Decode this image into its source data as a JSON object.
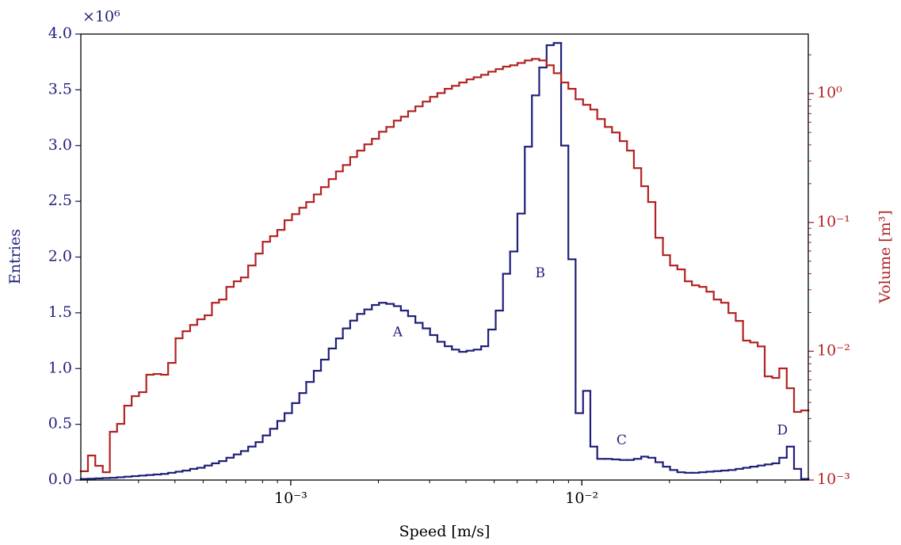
{
  "chart_data": {
    "type": "histogram",
    "xlabel": "Speed [m/s]",
    "ylabel": "Entries",
    "y_multiplier_label": "×10⁶",
    "y2label": "Volume [m³]",
    "xscale": "log",
    "y2scale": "log",
    "xlim": [
      0.00019,
      0.06
    ],
    "ylim": [
      0,
      4
    ],
    "y2lim": [
      0.001,
      2.9
    ],
    "xticks": [
      {
        "value": 0.001,
        "label": "10⁻³"
      },
      {
        "value": 0.01,
        "label": "10⁻²"
      }
    ],
    "xticks_minor": [
      0.0002,
      0.0003,
      0.0004,
      0.0005,
      0.0006,
      0.0007,
      0.0008,
      0.0009,
      0.002,
      0.003,
      0.004,
      0.005,
      0.006,
      0.007,
      0.008,
      0.009,
      0.02,
      0.03,
      0.04,
      0.05
    ],
    "yticks": [
      {
        "value": 0,
        "label": "0.0"
      },
      0.5,
      {
        "value": 1,
        "label": "1.0"
      },
      1.5,
      {
        "value": 2,
        "label": "2.0"
      },
      2.5,
      {
        "value": 3,
        "label": "3.0"
      },
      3.5,
      {
        "value": 4,
        "label": "4.0"
      }
    ],
    "y2ticks": [
      {
        "value": 0.001,
        "label": "10⁻³"
      },
      {
        "value": 0.01,
        "label": "10⁻²"
      },
      {
        "value": 0.1,
        "label": "10⁻¹"
      },
      {
        "value": 1,
        "label": "10⁰"
      }
    ],
    "y2ticks_minor": [
      0.002,
      0.003,
      0.004,
      0.005,
      0.006,
      0.007,
      0.008,
      0.009,
      0.02,
      0.03,
      0.04,
      0.05,
      0.06,
      0.07,
      0.08,
      0.09,
      0.2,
      0.3,
      0.4,
      0.5,
      0.6,
      0.7,
      0.8,
      0.9,
      2
    ],
    "bins": [
      0.00019,
      0.000201,
      0.000213,
      0.000226,
      0.000239,
      0.000253,
      0.000268,
      0.000284,
      0.000301,
      0.000319,
      0.000338,
      0.000358,
      0.000379,
      0.000402,
      0.000425,
      0.000451,
      0.000477,
      0.000506,
      0.000536,
      0.000567,
      0.000601,
      0.000637,
      0.000674,
      0.000714,
      0.000757,
      0.000801,
      0.000849,
      0.000899,
      0.000952,
      0.00101,
      0.00107,
      0.00113,
      0.0012,
      0.00127,
      0.00135,
      0.00143,
      0.00151,
      0.0016,
      0.00169,
      0.00179,
      0.0019,
      0.00201,
      0.00213,
      0.00226,
      0.00239,
      0.00253,
      0.00268,
      0.00284,
      0.00301,
      0.00319,
      0.00338,
      0.00358,
      0.00379,
      0.00402,
      0.00425,
      0.00451,
      0.00477,
      0.00506,
      0.00536,
      0.00567,
      0.00601,
      0.00637,
      0.00674,
      0.00714,
      0.00757,
      0.00801,
      0.00849,
      0.00899,
      0.00952,
      0.0101,
      0.0107,
      0.0113,
      0.012,
      0.0127,
      0.0135,
      0.0143,
      0.0151,
      0.016,
      0.0169,
      0.0179,
      0.019,
      0.0201,
      0.0213,
      0.0226,
      0.0239,
      0.0253,
      0.0268,
      0.0284,
      0.0301,
      0.0319,
      0.0338,
      0.0358,
      0.0379,
      0.0402,
      0.0425,
      0.0451,
      0.0477,
      0.0506,
      0.0536,
      0.0567,
      0.0601
    ],
    "series": [
      {
        "name": "Entries",
        "axis": "y",
        "color": "#1f1f7a",
        "values": [
          0.01,
          0.012,
          0.015,
          0.018,
          0.02,
          0.025,
          0.03,
          0.035,
          0.04,
          0.045,
          0.05,
          0.055,
          0.065,
          0.075,
          0.085,
          0.1,
          0.11,
          0.13,
          0.15,
          0.17,
          0.2,
          0.23,
          0.26,
          0.3,
          0.34,
          0.4,
          0.46,
          0.53,
          0.6,
          0.69,
          0.78,
          0.88,
          0.98,
          1.08,
          1.18,
          1.27,
          1.36,
          1.43,
          1.49,
          1.53,
          1.57,
          1.59,
          1.58,
          1.56,
          1.52,
          1.47,
          1.41,
          1.36,
          1.3,
          1.24,
          1.2,
          1.17,
          1.15,
          1.16,
          1.17,
          1.2,
          1.35,
          1.52,
          1.85,
          2.05,
          2.39,
          2.99,
          3.45,
          3.7,
          3.9,
          3.92,
          3.0,
          1.98,
          0.6,
          0.8,
          0.3,
          0.19,
          0.19,
          0.185,
          0.18,
          0.18,
          0.19,
          0.21,
          0.2,
          0.16,
          0.12,
          0.09,
          0.07,
          0.065,
          0.065,
          0.07,
          0.075,
          0.08,
          0.085,
          0.09,
          0.1,
          0.11,
          0.12,
          0.13,
          0.14,
          0.15,
          0.2,
          0.3,
          0.1,
          0.01
        ]
      },
      {
        "name": "Volume",
        "axis": "y2",
        "color": "#b22222",
        "values": [
          0.00117,
          0.00155,
          0.00129,
          0.00115,
          0.00237,
          0.00273,
          0.00378,
          0.00448,
          0.00481,
          0.00657,
          0.00666,
          0.00657,
          0.00812,
          0.0126,
          0.0143,
          0.016,
          0.0177,
          0.019,
          0.0238,
          0.0252,
          0.0316,
          0.0349,
          0.0374,
          0.0463,
          0.0573,
          0.0708,
          0.0782,
          0.0875,
          0.104,
          0.116,
          0.13,
          0.144,
          0.165,
          0.188,
          0.217,
          0.249,
          0.279,
          0.322,
          0.361,
          0.404,
          0.446,
          0.506,
          0.551,
          0.617,
          0.662,
          0.731,
          0.796,
          0.867,
          0.944,
          1.01,
          1.09,
          1.15,
          1.22,
          1.29,
          1.34,
          1.4,
          1.48,
          1.55,
          1.62,
          1.66,
          1.73,
          1.81,
          1.86,
          1.81,
          1.66,
          1.44,
          1.22,
          1.09,
          0.904,
          0.819,
          0.752,
          0.635,
          0.551,
          0.499,
          0.428,
          0.361,
          0.264,
          0.191,
          0.144,
          0.076,
          0.0557,
          0.0463,
          0.0432,
          0.0349,
          0.0325,
          0.0316,
          0.029,
          0.0252,
          0.0238,
          0.0198,
          0.0172,
          0.0121,
          0.0117,
          0.0109,
          0.00638,
          0.00621,
          0.00736,
          0.00516,
          0.00338,
          0.00347
        ]
      }
    ],
    "annotations": [
      {
        "text": "A",
        "x": 0.00233,
        "y": 1.32
      },
      {
        "text": "B",
        "x": 0.0072,
        "y": 1.85
      },
      {
        "text": "C",
        "x": 0.0137,
        "y": 0.35
      },
      {
        "text": "D",
        "x": 0.0489,
        "y": 0.44
      }
    ]
  }
}
